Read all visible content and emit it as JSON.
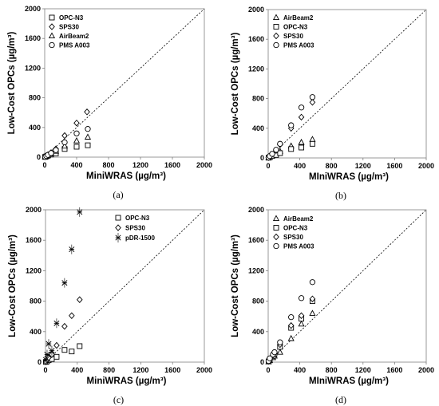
{
  "chart_data": [
    {
      "type": "scatter",
      "caption": "(a)",
      "xlabel": "MiniWRAS (µg/m³)",
      "ylabel": "Low-Cost OPCs (µg/m³)",
      "xlim": [
        0,
        2000
      ],
      "ylim": [
        0,
        2000
      ],
      "x_ticks": [
        "0",
        "400",
        "800",
        "1200",
        "1600",
        "2000"
      ],
      "y_ticks": [
        "0",
        "400",
        "800",
        "1200",
        "1600",
        "2000"
      ],
      "legend_position": "top-left",
      "reference_line": "1:1",
      "series": [
        {
          "name": "OPC-N3",
          "marker": "square",
          "x": [
            5,
            20,
            40,
            80,
            140,
            250,
            400,
            540
          ],
          "y": [
            3,
            10,
            20,
            35,
            50,
            110,
            140,
            160
          ]
        },
        {
          "name": "SPS30",
          "marker": "diamond",
          "x": [
            5,
            20,
            40,
            80,
            140,
            250,
            400,
            530
          ],
          "y": [
            5,
            15,
            30,
            60,
            110,
            290,
            460,
            610
          ]
        },
        {
          "name": "AirBeam2",
          "marker": "triangle",
          "x": [
            5,
            20,
            40,
            80,
            140,
            250,
            400,
            540
          ],
          "y": [
            3,
            12,
            25,
            45,
            80,
            150,
            220,
            270
          ]
        },
        {
          "name": "PMS A003",
          "marker": "circle",
          "x": [
            5,
            20,
            40,
            80,
            140,
            250,
            400,
            540
          ],
          "y": [
            4,
            15,
            30,
            55,
            95,
            200,
            320,
            380
          ]
        }
      ]
    },
    {
      "type": "scatter",
      "caption": "(b)",
      "xlabel": "MIniWRAS (µg/m³)",
      "ylabel": "Low-Cost OPCs (µg/m³)",
      "xlim": [
        0,
        2000
      ],
      "ylim": [
        0,
        2000
      ],
      "x_ticks": [
        "0",
        "400",
        "800",
        "1200",
        "1600",
        "2000"
      ],
      "y_ticks": [
        "0",
        "400",
        "800",
        "1200",
        "1600",
        "2000"
      ],
      "legend_position": "top-left",
      "reference_line": "1:1",
      "series": [
        {
          "name": "AirBeam2",
          "marker": "triangle",
          "x": [
            5,
            20,
            50,
            100,
            150,
            290,
            420,
            560
          ],
          "y": [
            5,
            15,
            30,
            55,
            90,
            160,
            210,
            250
          ]
        },
        {
          "name": "OPC-N3",
          "marker": "square",
          "x": [
            5,
            20,
            50,
            100,
            150,
            290,
            420,
            560
          ],
          "y": [
            3,
            10,
            25,
            40,
            65,
            120,
            140,
            190
          ]
        },
        {
          "name": "SPS30",
          "marker": "diamond",
          "x": [
            5,
            20,
            50,
            100,
            150,
            290,
            420,
            560
          ],
          "y": [
            5,
            20,
            50,
            100,
            180,
            400,
            550,
            750
          ]
        },
        {
          "name": "PMS A003",
          "marker": "circle",
          "x": [
            5,
            20,
            50,
            100,
            150,
            290,
            420,
            560
          ],
          "y": [
            6,
            25,
            55,
            110,
            190,
            440,
            680,
            820
          ]
        }
      ]
    },
    {
      "type": "scatter",
      "caption": "(c)",
      "xlabel": "MiniWRAS (µg/m³)",
      "ylabel": "Low-Cost OPCs (µg/m³)",
      "xlim": [
        0,
        2000
      ],
      "ylim": [
        0,
        2000
      ],
      "x_ticks": [
        "0",
        "400",
        "800",
        "1200",
        "1600",
        "2000"
      ],
      "y_ticks": [
        "0",
        "400",
        "800",
        "1200",
        "1600",
        "2000"
      ],
      "legend_position": "top-right",
      "reference_line": "1:1",
      "series": [
        {
          "name": "OPC-N3",
          "marker": "square",
          "x": [
            5,
            20,
            40,
            80,
            140,
            240,
            330,
            430
          ],
          "y": [
            3,
            10,
            25,
            40,
            70,
            160,
            140,
            210
          ]
        },
        {
          "name": "SPS30",
          "marker": "diamond",
          "x": [
            5,
            20,
            40,
            80,
            140,
            240,
            330,
            430
          ],
          "y": [
            5,
            30,
            60,
            100,
            220,
            470,
            610,
            820
          ]
        },
        {
          "name": "pDR-1500",
          "marker": "asterisk",
          "x": [
            5,
            20,
            40,
            80,
            140,
            240,
            330,
            430
          ],
          "y": [
            30,
            100,
            240,
            150,
            510,
            1040,
            1480,
            1970
          ]
        }
      ]
    },
    {
      "type": "scatter",
      "caption": "(d)",
      "xlabel": "MIniWRAS (µg/m³)",
      "ylabel": "Low-Cost OPCs (µg/m³)",
      "xlim": [
        0,
        2000
      ],
      "ylim": [
        0,
        2000
      ],
      "x_ticks": [
        "0",
        "400",
        "800",
        "1200",
        "1600",
        "2000"
      ],
      "y_ticks": [
        "0",
        "400",
        "800",
        "1200",
        "1600",
        "2000"
      ],
      "legend_position": "top-left",
      "reference_line": "1:1",
      "series": [
        {
          "name": "AirBeam2",
          "marker": "triangle",
          "x": [
            5,
            20,
            60,
            80,
            150,
            290,
            420,
            560
          ],
          "y": [
            5,
            20,
            60,
            80,
            130,
            310,
            500,
            640
          ]
        },
        {
          "name": "OPC-N3",
          "marker": "square",
          "x": [
            5,
            20,
            60,
            80,
            150,
            290,
            420,
            560
          ],
          "y": [
            10,
            35,
            80,
            110,
            200,
            450,
            570,
            800
          ]
        },
        {
          "name": "SPS30",
          "marker": "diamond",
          "x": [
            5,
            20,
            60,
            80,
            150,
            290,
            420,
            560
          ],
          "y": [
            12,
            40,
            90,
            120,
            230,
            480,
            610,
            830
          ]
        },
        {
          "name": "PMS A003",
          "marker": "circle",
          "x": [
            5,
            20,
            60,
            80,
            150,
            290,
            420,
            560
          ],
          "y": [
            15,
            50,
            100,
            130,
            260,
            590,
            840,
            1050
          ]
        }
      ]
    }
  ]
}
